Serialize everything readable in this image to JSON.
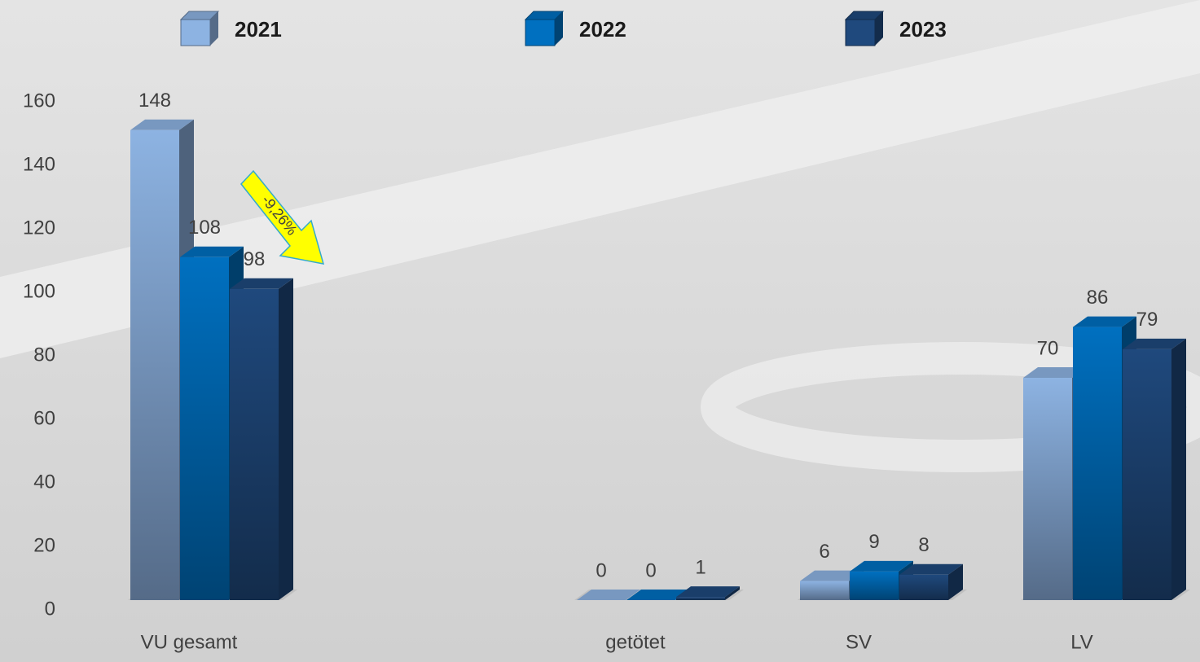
{
  "chart_data": {
    "type": "bar3d",
    "categories": [
      "VU gesamt",
      "getötet",
      "SV",
      "LV"
    ],
    "series": [
      {
        "name": "2021",
        "color": "#8db3e2",
        "values": [
          148,
          0,
          6,
          70
        ]
      },
      {
        "name": "2022",
        "color": "#0070c0",
        "values": [
          108,
          0,
          9,
          86
        ]
      },
      {
        "name": "2023",
        "color": "#1f497d",
        "values": [
          98,
          1,
          8,
          79
        ]
      }
    ],
    "ylim": [
      0,
      160
    ],
    "yticks": [
      0,
      20,
      40,
      60,
      80,
      100,
      120,
      140,
      160
    ],
    "annotation": "-9,26%"
  }
}
